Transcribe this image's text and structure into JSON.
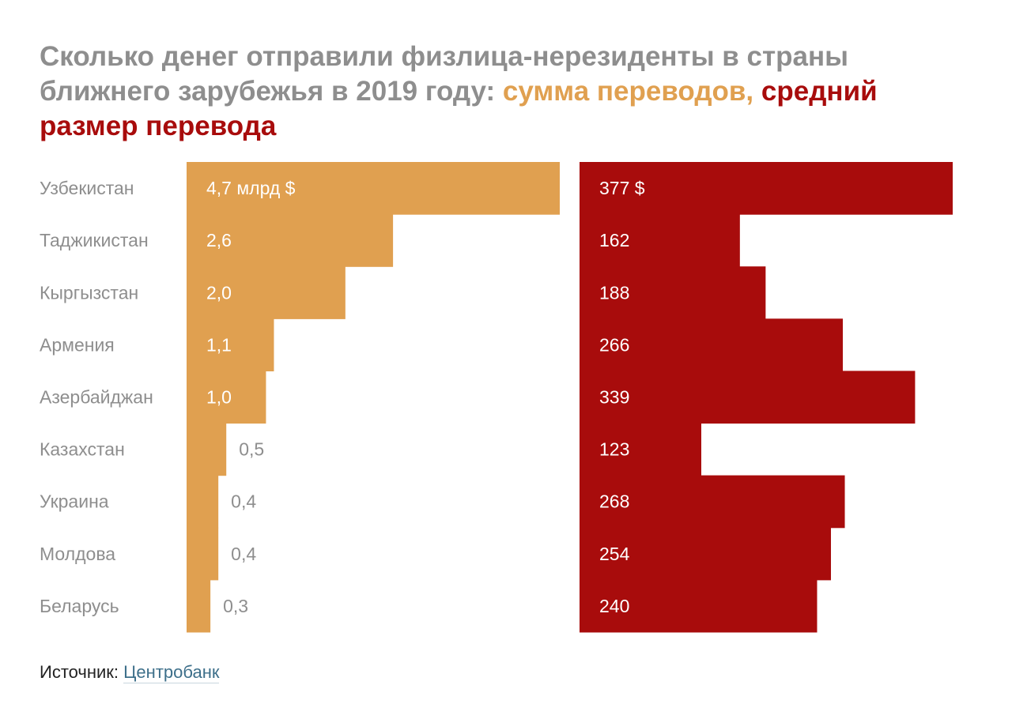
{
  "title": {
    "main": "Сколько денег отправили физлица-нерезиденты в страны ближнего зарубежья в 2019 году: ",
    "series1_label": "сумма переводов,",
    "series2_label": " средний размер перевода"
  },
  "source": {
    "label": "Источник: ",
    "link": "Центробанк"
  },
  "colors": {
    "amount": "#e0a050",
    "average": "#a80c0c",
    "category_text": "#8e8e8e",
    "outside_label": "#8e8e8e",
    "inside_label": "#ffffff"
  },
  "chart_data": {
    "type": "bar",
    "orientation": "horizontal",
    "categories": [
      "Узбекистан",
      "Таджикистан",
      "Кыргызстан",
      "Армения",
      "Азербайджан",
      "Казахстан",
      "Украина",
      "Молдова",
      "Беларусь"
    ],
    "series": [
      {
        "name": "сумма переводов",
        "unit": "млрд $",
        "values": [
          4.7,
          2.6,
          2.0,
          1.1,
          1.0,
          0.5,
          0.4,
          0.4,
          0.3
        ],
        "labels": [
          "4,7 млрд $",
          "2,6",
          "2,0",
          "1,1",
          "1,0",
          "0,5",
          "0,4",
          "0,4",
          "0,3"
        ],
        "max": 4.7
      },
      {
        "name": "средний размер перевода",
        "unit": "$",
        "values": [
          377,
          162,
          188,
          266,
          339,
          123,
          268,
          254,
          240
        ],
        "labels": [
          "377 $",
          "162",
          "188",
          "266",
          "339",
          "123",
          "268",
          "254",
          "240"
        ],
        "max": 377
      }
    ],
    "title": "Сколько денег отправили физлица-нерезиденты в страны ближнего зарубежья в 2019 году: сумма переводов, средний размер перевода",
    "xlabel": "",
    "ylabel": ""
  }
}
